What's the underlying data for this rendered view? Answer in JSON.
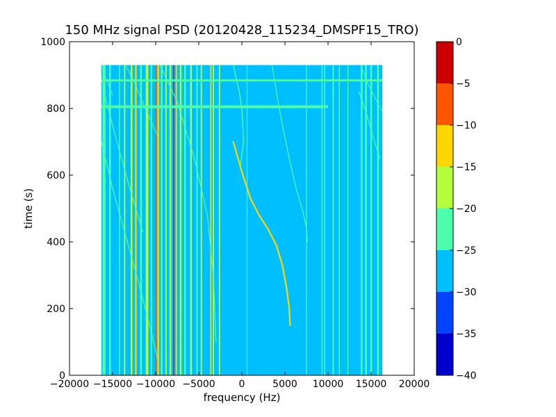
{
  "chart_data": {
    "type": "heatmap",
    "title": "150 MHz signal PSD (20120428_115234_DMSPF15_TRO)",
    "xlabel": "frequency (Hz)",
    "ylabel": "time (s)",
    "xlim": [
      -20000,
      20000
    ],
    "ylim": [
      0,
      1000
    ],
    "xticks": [
      -20000,
      -15000,
      -10000,
      -5000,
      0,
      5000,
      10000,
      15000,
      20000
    ],
    "xtick_labels": [
      "−20000",
      "−15000",
      "−10000",
      "−5000",
      "0",
      "5000",
      "10000",
      "15000",
      "20000"
    ],
    "yticks": [
      0,
      200,
      400,
      600,
      800,
      1000
    ],
    "ytick_labels": [
      "0",
      "200",
      "400",
      "600",
      "800",
      "1000"
    ],
    "data_extent": {
      "freq_min": -16300,
      "freq_max": 16300,
      "time_min": 0,
      "time_max": 930
    },
    "background_level": -27.5,
    "colorbar": {
      "levels": [
        -40,
        -35,
        -30,
        -25,
        -20,
        -15,
        -10,
        -5,
        0
      ],
      "tick_labels": [
        "−40",
        "−35",
        "−30",
        "−25",
        "−20",
        "−15",
        "−10",
        "−5",
        "0"
      ],
      "colors": [
        "#0000cd",
        "#0044ff",
        "#00bfff",
        "#4dffaa",
        "#b3ff3c",
        "#ffd700",
        "#ff5500",
        "#cc0000"
      ]
    },
    "vertical_lines": [
      {
        "freq": -16000,
        "level": -22.5,
        "width": 350
      },
      {
        "freq": -15300,
        "level": -22.5,
        "width": 200
      },
      {
        "freq": -14200,
        "level": -22.5,
        "width": 120
      },
      {
        "freq": -13600,
        "level": -17.5,
        "width": 150
      },
      {
        "freq": -12800,
        "level": -17.5,
        "width": 200
      },
      {
        "freq": -12300,
        "level": -12.5,
        "width": 180
      },
      {
        "freq": -11700,
        "level": -22.5,
        "width": 200
      },
      {
        "freq": -11000,
        "level": -17.5,
        "width": 300
      },
      {
        "freq": -10500,
        "level": -22.5,
        "width": 150
      },
      {
        "freq": -10000,
        "level": -7.5,
        "width": 120
      },
      {
        "freq": -9700,
        "level": -12.5,
        "width": 200
      },
      {
        "freq": -9300,
        "level": -22.5,
        "width": 200
      },
      {
        "freq": -8800,
        "level": -17.5,
        "width": 150
      },
      {
        "freq": -8300,
        "level": -17.5,
        "width": 200
      },
      {
        "freq": -7900,
        "level": -2.5,
        "width": 100
      },
      {
        "freq": -7600,
        "level": -12.5,
        "width": 150
      },
      {
        "freq": -7100,
        "level": -17.5,
        "width": 200
      },
      {
        "freq": -6600,
        "level": -22.5,
        "width": 200
      },
      {
        "freq": -5900,
        "level": -17.5,
        "width": 200
      },
      {
        "freq": -5200,
        "level": -22.5,
        "width": 150
      },
      {
        "freq": -4700,
        "level": -17.5,
        "width": 150
      },
      {
        "freq": -3600,
        "level": -12.5,
        "width": 150
      },
      {
        "freq": -3300,
        "level": -17.5,
        "width": 150
      },
      {
        "freq": -2600,
        "level": -17.5,
        "width": 150
      },
      {
        "freq": 600,
        "level": -22.5,
        "width": 100
      },
      {
        "freq": 7500,
        "level": -22.5,
        "width": 100
      },
      {
        "freq": 9300,
        "level": -22.5,
        "width": 120
      },
      {
        "freq": 9600,
        "level": -22.5,
        "width": 120
      },
      {
        "freq": 10600,
        "level": -22.5,
        "width": 150
      },
      {
        "freq": 11300,
        "level": -22.5,
        "width": 120
      },
      {
        "freq": 12300,
        "level": -22.5,
        "width": 100
      },
      {
        "freq": 13900,
        "level": -22.5,
        "width": 200
      },
      {
        "freq": 14400,
        "level": -22.5,
        "width": 200
      },
      {
        "freq": 15000,
        "level": -22.5,
        "width": 200
      },
      {
        "freq": 15800,
        "level": -22.5,
        "width": 200
      }
    ],
    "curves": [
      {
        "level": -12.5,
        "width": 2.2,
        "points": [
          [
            -1000,
            700
          ],
          [
            0,
            610
          ],
          [
            1000,
            530
          ],
          [
            2000,
            480
          ],
          [
            3000,
            440
          ],
          [
            4000,
            390
          ],
          [
            4700,
            330
          ],
          [
            5200,
            260
          ],
          [
            5500,
            200
          ],
          [
            5600,
            150
          ]
        ]
      },
      {
        "level": -22.5,
        "width": 1.4,
        "points": [
          [
            -1000,
            930
          ],
          [
            -300,
            850
          ],
          [
            0,
            800
          ],
          [
            200,
            700
          ],
          [
            -200,
            620
          ]
        ]
      },
      {
        "level": -22.5,
        "width": 1.2,
        "points": [
          [
            3500,
            930
          ],
          [
            4000,
            850
          ],
          [
            4700,
            750
          ],
          [
            5500,
            650
          ],
          [
            6300,
            560
          ],
          [
            7100,
            490
          ],
          [
            7500,
            440
          ],
          [
            7600,
            400
          ]
        ]
      },
      {
        "level": -22.5,
        "width": 1.2,
        "points": [
          [
            -9500,
            930
          ],
          [
            -7500,
            820
          ],
          [
            -5500,
            650
          ],
          [
            -4000,
            480
          ],
          [
            -3300,
            300
          ],
          [
            -3000,
            100
          ]
        ]
      },
      {
        "level": -22.5,
        "width": 1.2,
        "points": [
          [
            -16300,
            700
          ],
          [
            -15000,
            560
          ],
          [
            -13500,
            420
          ],
          [
            -12000,
            280
          ],
          [
            -10500,
            130
          ],
          [
            -9700,
            40
          ]
        ]
      },
      {
        "level": -22.5,
        "width": 1.2,
        "points": [
          [
            -16000,
            850
          ],
          [
            -14500,
            700
          ],
          [
            -13000,
            560
          ],
          [
            -11500,
            430
          ]
        ]
      },
      {
        "level": -22.5,
        "width": 1.2,
        "points": [
          [
            13600,
            850
          ],
          [
            14500,
            780
          ],
          [
            15400,
            700
          ],
          [
            16000,
            650
          ]
        ]
      },
      {
        "level": -22.5,
        "width": 1.0,
        "points": [
          [
            13800,
            930
          ],
          [
            14500,
            880
          ],
          [
            15500,
            830
          ],
          [
            16300,
            790
          ]
        ]
      },
      {
        "level": -22.5,
        "width": 1.0,
        "points": [
          [
            -13500,
            930
          ],
          [
            -12500,
            880
          ],
          [
            -11200,
            800
          ],
          [
            -9800,
            720
          ]
        ]
      },
      {
        "level": -22.5,
        "width": 1.0,
        "points": [
          [
            -16200,
            930
          ],
          [
            -15800,
            890
          ],
          [
            -15000,
            840
          ]
        ]
      }
    ],
    "horizontal_bands": [
      {
        "time": 805,
        "level": -22.5,
        "height": 4,
        "from": -16300,
        "to": 10000
      },
      {
        "time": 884,
        "level": -22.5,
        "height": 3,
        "from": -16300,
        "to": 16300
      }
    ]
  }
}
